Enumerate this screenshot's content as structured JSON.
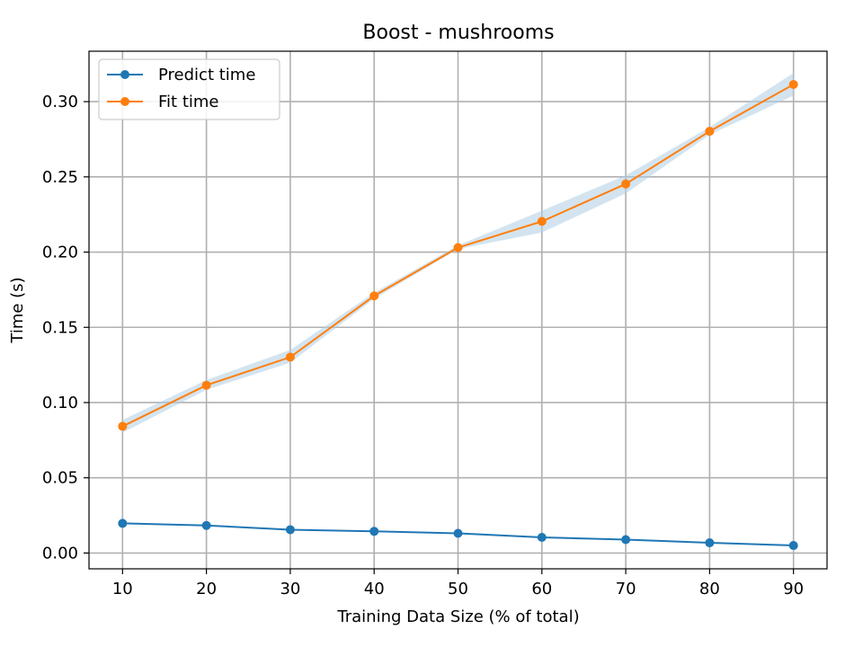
{
  "chart_data": {
    "type": "line",
    "title": "Boost - mushrooms",
    "xlabel": "Training Data Size (% of total)",
    "ylabel": "Time (s)",
    "x": [
      10,
      20,
      30,
      40,
      50,
      60,
      70,
      80,
      90
    ],
    "xticks": [
      10,
      20,
      30,
      40,
      50,
      60,
      70,
      80,
      90
    ],
    "yticks": [
      0.0,
      0.05,
      0.1,
      0.15,
      0.2,
      0.25,
      0.3
    ],
    "ytick_labels": [
      "0.00",
      "0.05",
      "0.10",
      "0.15",
      "0.20",
      "0.25",
      "0.30"
    ],
    "xlim": [
      6,
      94
    ],
    "ylim": [
      -0.0105,
      0.3335
    ],
    "grid": true,
    "legend_position": "top-left",
    "series": [
      {
        "name": "Predict time",
        "color": "#1f77b4",
        "values": [
          0.0197,
          0.0183,
          0.0155,
          0.0144,
          0.0131,
          0.0104,
          0.0089,
          0.0068,
          0.005
        ],
        "band_lower": [
          0.0194,
          0.018,
          0.0152,
          0.0141,
          0.0128,
          0.0101,
          0.0086,
          0.0065,
          0.0047
        ],
        "band_upper": [
          0.02,
          0.0186,
          0.0158,
          0.0147,
          0.0134,
          0.0107,
          0.0092,
          0.0071,
          0.0053
        ]
      },
      {
        "name": "Fit time",
        "color": "#ff7f0e",
        "band_color": "#aecde3",
        "values": [
          0.0842,
          0.1115,
          0.1302,
          0.1709,
          0.203,
          0.2204,
          0.2453,
          0.2803,
          0.3114
        ],
        "band_lower": [
          0.08,
          0.1085,
          0.1265,
          0.169,
          0.202,
          0.213,
          0.239,
          0.278,
          0.304
        ],
        "band_upper": [
          0.0885,
          0.115,
          0.135,
          0.173,
          0.2045,
          0.2275,
          0.251,
          0.283,
          0.319
        ]
      }
    ]
  }
}
